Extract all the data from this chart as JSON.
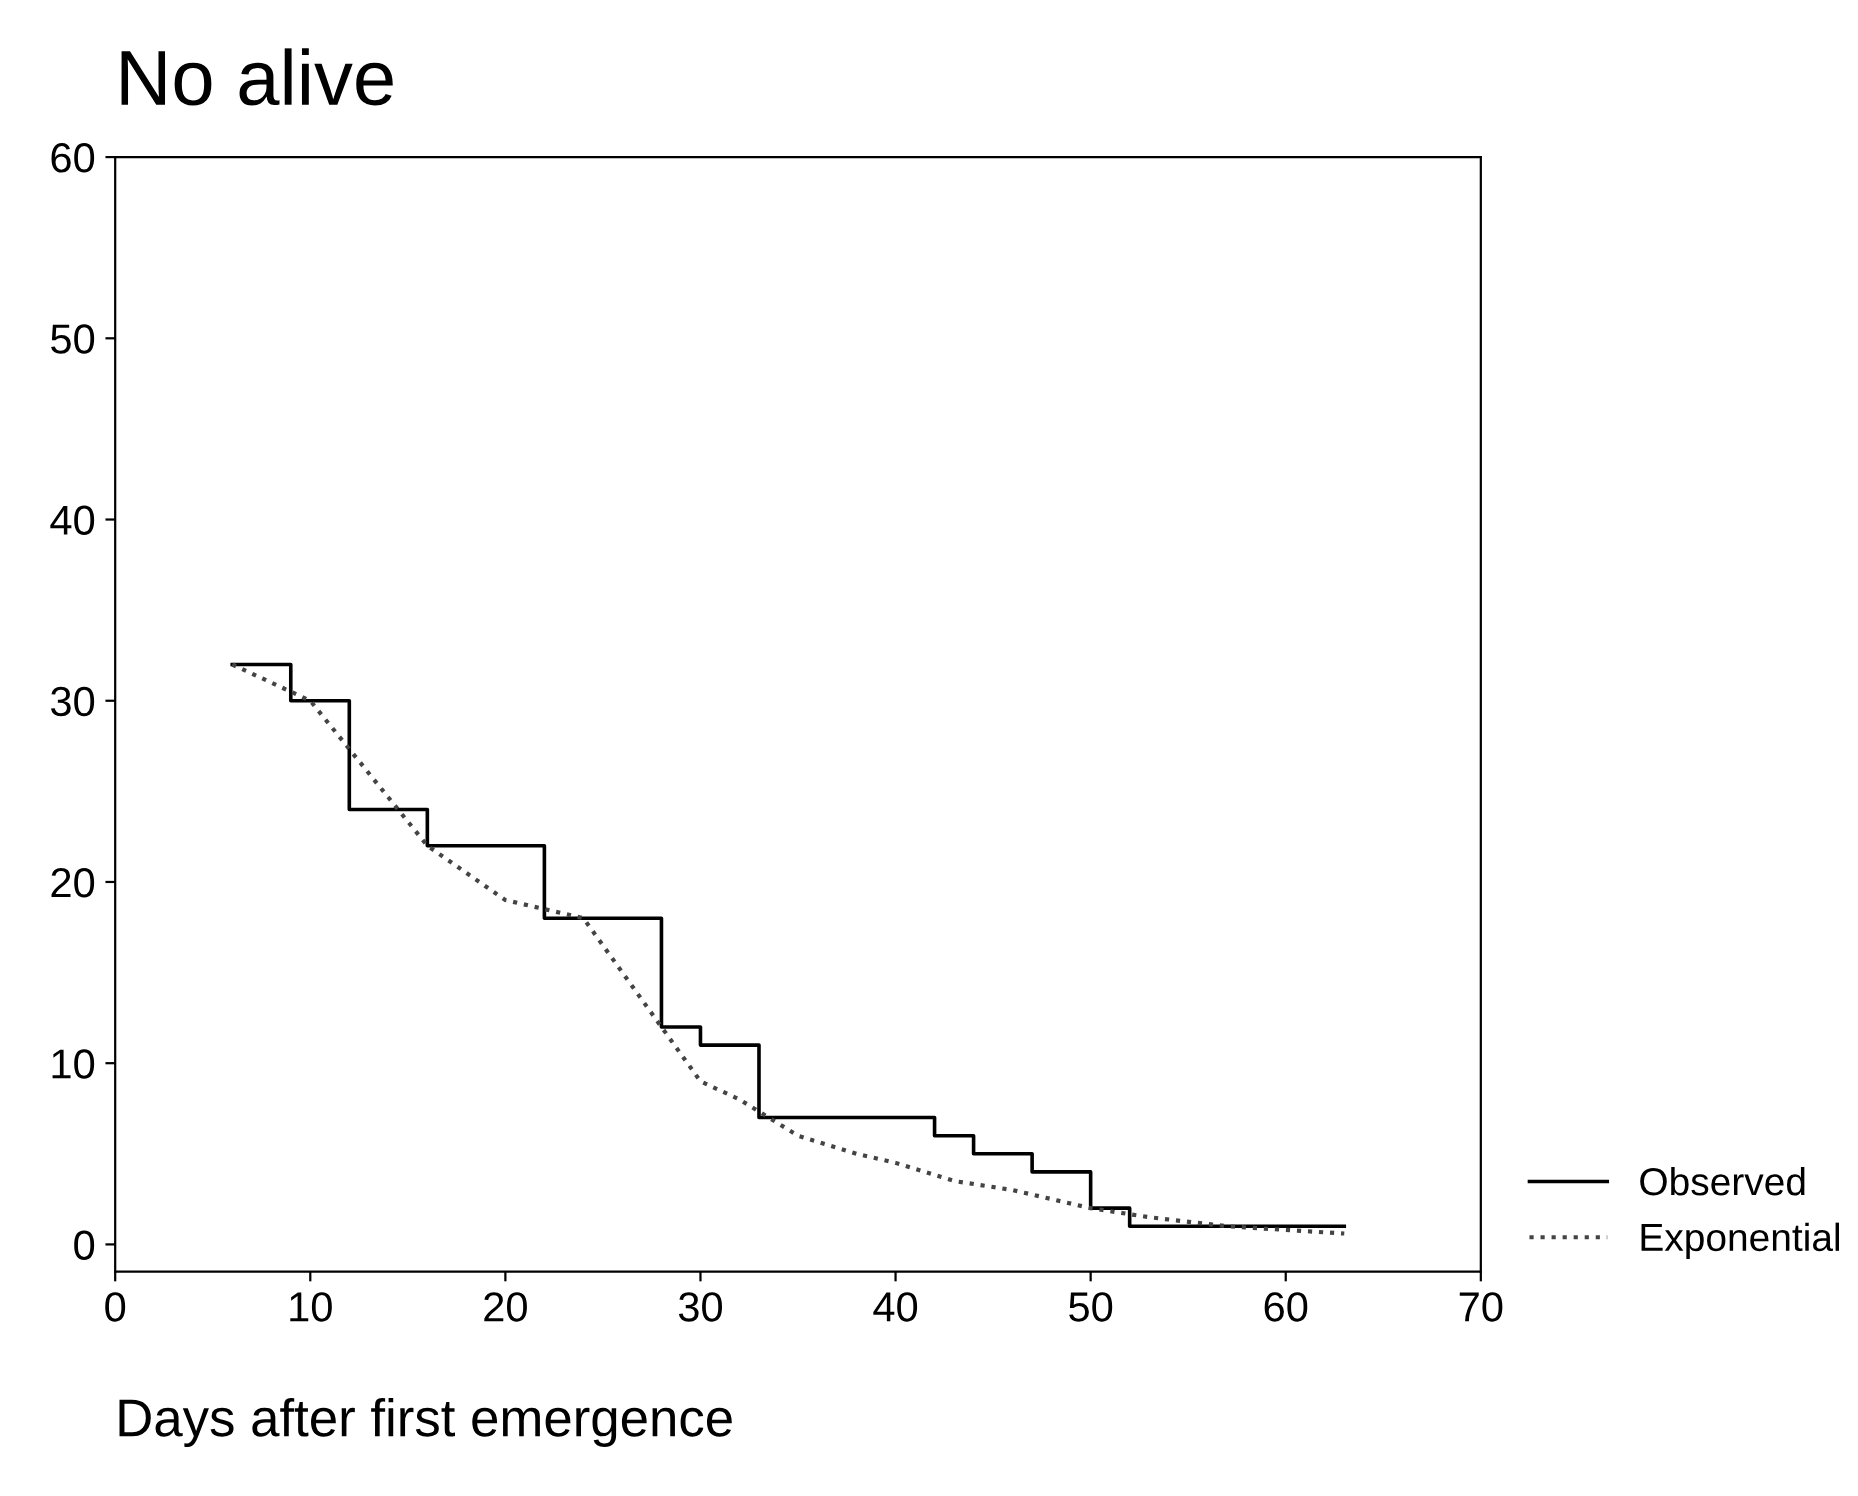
{
  "chart_data": {
    "type": "line",
    "title": "No alive",
    "xlabel": "Days after first emergence",
    "xlim": [
      0,
      70
    ],
    "xticks": [
      0,
      10,
      20,
      30,
      40,
      50,
      60,
      70
    ],
    "ylim": [
      -1.5,
      60
    ],
    "yticks": [
      0,
      10,
      20,
      30,
      40,
      50,
      60
    ],
    "grid": false,
    "legend": "bottom right",
    "marker": "none",
    "series": [
      {
        "name": "Observed",
        "type": "step",
        "color": "#000000",
        "line_style": "solid",
        "x": [
          6,
          9,
          12,
          16,
          22,
          24,
          28,
          30,
          33,
          40,
          42,
          44,
          47,
          50,
          52,
          63
        ],
        "values": [
          32,
          30,
          24,
          22,
          18,
          18,
          12,
          11,
          7,
          7,
          6,
          5,
          4,
          2,
          1,
          1
        ]
      },
      {
        "name": "Exponential",
        "color": "#444444",
        "line_style": "dotted",
        "x": [
          6,
          10,
          16,
          20,
          24,
          28,
          30,
          32,
          35,
          38,
          40,
          43,
          46,
          50,
          53,
          57,
          63
        ],
        "values": [
          32,
          30,
          22,
          19,
          18,
          12,
          9,
          8,
          6,
          5,
          4.5,
          3.5,
          3,
          2,
          1.5,
          1,
          0.6
        ]
      }
    ]
  }
}
